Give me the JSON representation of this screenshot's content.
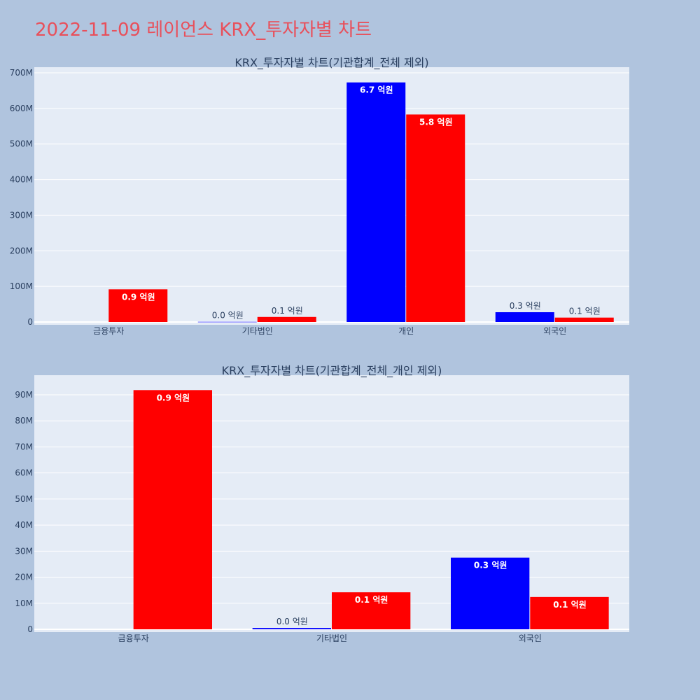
{
  "page": {
    "title": "2022-11-09 레이언스 KRX_투자자별 차트"
  },
  "colors": {
    "background": "#b0c4de",
    "title": "#e8505b",
    "buy": "#0000ff",
    "sell": "#ff0000",
    "plot_bg": "#e5ecf6",
    "text": "#2a3f5f"
  },
  "chart_data": [
    {
      "type": "bar",
      "title": "KRX_투자자별 차트(기관합계_전체 제외)",
      "categories": [
        "금융투자",
        "기타법인",
        "개인",
        "외국인"
      ],
      "ylim": [
        0,
        700000000
      ],
      "yticks": [
        0,
        100000000,
        200000000,
        300000000,
        400000000,
        500000000,
        600000000,
        700000000
      ],
      "ytick_labels": [
        "0",
        "100M",
        "200M",
        "300M",
        "400M",
        "500M",
        "600M",
        "700M"
      ],
      "grid": true,
      "series": [
        {
          "color": "#0000ff",
          "values": [
            null,
            500000,
            673000000,
            27500000
          ],
          "labels": [
            "",
            "0.0 억원",
            "6.7 억원",
            "0.3 억원"
          ]
        },
        {
          "color": "#ff0000",
          "values": [
            91800000,
            14200000,
            583000000,
            12400000
          ],
          "labels": [
            "0.9 억원",
            "0.1 억원",
            "5.8 억원",
            "0.1 억원"
          ]
        }
      ]
    },
    {
      "type": "bar",
      "title": "KRX_투자자별 차트(기관합계_전체_개인 제외)",
      "categories": [
        "금융투자",
        "기타법인",
        "외국인"
      ],
      "ylim": [
        0,
        90000000
      ],
      "yticks": [
        0,
        10000000,
        20000000,
        30000000,
        40000000,
        50000000,
        60000000,
        70000000,
        80000000,
        90000000
      ],
      "ytick_labels": [
        "0",
        "10M",
        "20M",
        "30M",
        "40M",
        "50M",
        "60M",
        "70M",
        "80M",
        "90M"
      ],
      "grid": true,
      "series": [
        {
          "color": "#0000ff",
          "values": [
            null,
            500000,
            27500000
          ],
          "labels": [
            "",
            "0.0 억원",
            "0.3 억원"
          ]
        },
        {
          "color": "#ff0000",
          "values": [
            91800000,
            14200000,
            12400000
          ],
          "labels": [
            "0.9 억원",
            "0.1 억원",
            "0.1 억원"
          ]
        }
      ]
    }
  ]
}
